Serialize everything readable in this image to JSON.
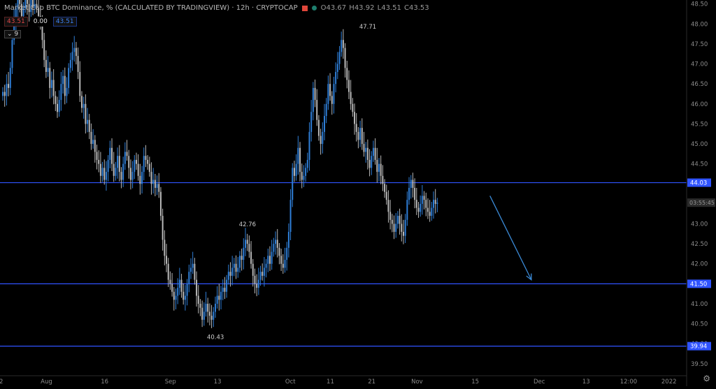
{
  "header": {
    "title": "Market Cap BTC Dominance, % (CALCULATED BY TRADINGVIEW) · 12h · CRYPTOCAP",
    "ohlc": {
      "o": "O43.67",
      "h": "H43.92",
      "l": "L43.51",
      "c": "C43.53"
    },
    "badge_sell": "43.51",
    "badge_spread": "0.00",
    "badge_buy": "43.51",
    "indicators_toggle": "9"
  },
  "countdown": "03:55:45",
  "colors": {
    "up": "#2f7fd8",
    "down": "#b8b8b8",
    "hline": "#2f53ff",
    "label_bg": "#2f53ff",
    "arrow": "#3b8ad6"
  },
  "chart_data": {
    "type": "candlestick",
    "title": "Market Cap BTC Dominance, % (CALCULATED BY TRADINGVIEW) · 12h · CRYPTOCAP",
    "ylim": [
      39.2,
      48.6
    ],
    "yticks": [
      39.5,
      40.0,
      40.5,
      41.0,
      41.5,
      42.0,
      42.5,
      43.0,
      43.5,
      44.0,
      44.5,
      45.0,
      45.5,
      46.0,
      46.5,
      47.0,
      47.5,
      48.0,
      48.5
    ],
    "ytick_labels": [
      "39.50",
      "40.00",
      "40.50",
      "41.00",
      "41.50",
      "42.00",
      "42.50",
      "43.00",
      "43.50",
      "44.00",
      "44.50",
      "45.00",
      "45.50",
      "46.00",
      "46.50",
      "47.00",
      "47.50",
      "48.00",
      "48.50"
    ],
    "xticks": [
      {
        "label": "2",
        "i": 0
      },
      {
        "label": "Aug",
        "i": 22
      },
      {
        "label": "16",
        "i": 54
      },
      {
        "label": "Sep",
        "i": 88
      },
      {
        "label": "13",
        "i": 114
      },
      {
        "label": "Oct",
        "i": 152
      },
      {
        "label": "11",
        "i": 174
      },
      {
        "label": "21",
        "i": 196
      },
      {
        "label": "Nov",
        "i": 219
      },
      {
        "label": "15",
        "i": 251
      },
      {
        "label": "Dec",
        "i": 284
      },
      {
        "label": "13",
        "i": 310
      },
      {
        "label": "12:00",
        "i": 330
      },
      {
        "label": "2022",
        "i": 352
      }
    ],
    "hlines": [
      44.03,
      41.5,
      39.94
    ],
    "hline_labels": [
      "44.03",
      "41.50",
      "39.94"
    ],
    "last_price": 43.53,
    "annotations": [
      {
        "text": "47.71",
        "i": 194,
        "value": 47.71,
        "pos": "above"
      },
      {
        "text": "42.76",
        "i": 130,
        "value": 42.76,
        "pos": "above"
      },
      {
        "text": "40.43",
        "i": 113,
        "value": 40.43,
        "pos": "below"
      }
    ],
    "arrow": {
      "from": {
        "i": 259,
        "value": 43.7
      },
      "to": {
        "i": 281,
        "value": 41.6
      }
    },
    "closes": [
      46.3,
      46.2,
      46.5,
      46.4,
      46.9,
      47.6,
      48.1,
      48.4,
      48.6,
      48.5,
      48.2,
      48.4,
      48.6,
      48.5,
      48.3,
      48.6,
      48.4,
      48.5,
      48.4,
      48.2,
      48.1,
      47.6,
      47.1,
      46.8,
      46.9,
      46.4,
      46.6,
      46.2,
      46.0,
      45.8,
      46.1,
      46.5,
      46.7,
      46.2,
      46.4,
      46.9,
      47.1,
      47.3,
      47.4,
      47.2,
      46.8,
      46.2,
      45.9,
      46.0,
      45.5,
      45.6,
      45.3,
      45.0,
      45.1,
      44.8,
      44.6,
      44.5,
      44.2,
      44.4,
      44.1,
      44.3,
      44.6,
      44.9,
      44.5,
      44.2,
      44.4,
      44.7,
      44.3,
      44.1,
      44.5,
      44.8,
      44.7,
      44.4,
      44.1,
      44.3,
      44.6,
      44.5,
      44.2,
      44.0,
      44.3,
      44.7,
      44.6,
      44.5,
      44.3,
      44.0,
      44.1,
      43.9,
      44.0,
      43.8,
      43.2,
      42.6,
      42.2,
      42.0,
      41.6,
      41.5,
      41.3,
      41.1,
      41.2,
      41.4,
      41.6,
      41.3,
      41.1,
      41.2,
      41.5,
      41.8,
      41.9,
      42.0,
      41.6,
      41.2,
      41.0,
      40.9,
      40.6,
      40.8,
      41.0,
      40.8,
      40.7,
      40.6,
      40.8,
      41.0,
      41.2,
      41.1,
      41.3,
      41.4,
      41.3,
      41.6,
      41.8,
      41.7,
      41.9,
      42.0,
      41.8,
      41.9,
      42.2,
      42.1,
      42.4,
      42.6,
      42.5,
      42.3,
      42.0,
      41.7,
      41.5,
      41.4,
      41.6,
      41.8,
      41.7,
      41.9,
      42.0,
      42.2,
      42.0,
      42.3,
      42.5,
      42.6,
      42.4,
      42.2,
      42.0,
      41.9,
      42.1,
      42.4,
      42.8,
      43.6,
      44.4,
      44.2,
      44.5,
      44.9,
      44.3,
      44.1,
      44.2,
      44.4,
      44.6,
      45.3,
      45.8,
      46.4,
      46.1,
      45.6,
      45.2,
      45.0,
      45.3,
      45.7,
      46.0,
      46.5,
      46.2,
      46.0,
      46.5,
      46.8,
      47.0,
      47.3,
      47.6,
      47.4,
      46.9,
      46.6,
      46.3,
      46.0,
      45.8,
      45.5,
      45.3,
      45.1,
      45.4,
      45.0,
      44.8,
      44.9,
      44.6,
      44.4,
      44.7,
      44.9,
      44.6,
      44.3,
      44.5,
      44.2,
      44.0,
      43.8,
      43.6,
      43.3,
      43.1,
      43.0,
      42.8,
      43.0,
      43.2,
      43.0,
      42.8,
      42.7,
      43.1,
      43.6,
      43.9,
      44.1,
      43.9,
      43.6,
      43.4,
      43.3,
      43.5,
      43.7,
      43.6,
      43.4,
      43.3,
      43.2,
      43.4,
      43.6,
      43.5,
      43.53
    ]
  }
}
